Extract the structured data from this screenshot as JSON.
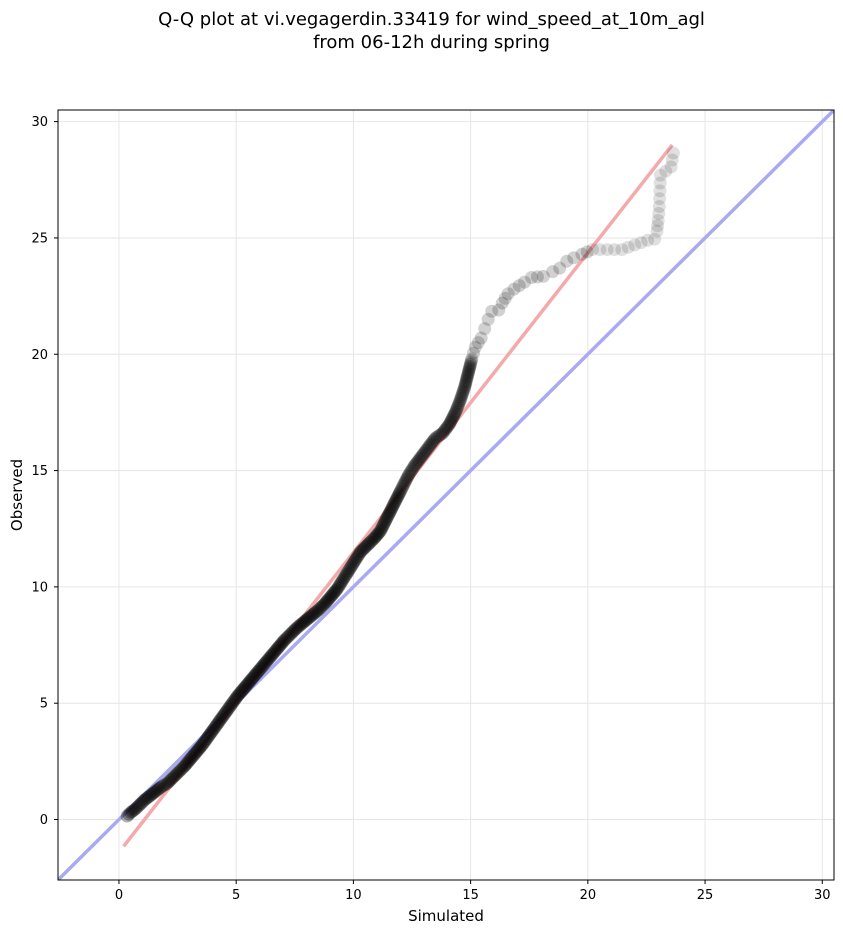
{
  "chart_data": {
    "type": "scatter",
    "title_line1": "Q-Q plot at vi.vegagerdin.33419 for wind_speed_at_10m_agl",
    "title_line2": "from 06-12h during spring",
    "xlabel": "Simulated",
    "ylabel": "Observed",
    "xlim": [
      -2.6,
      30.5
    ],
    "ylim": [
      -2.6,
      30.5
    ],
    "xticks": [
      0,
      5,
      10,
      15,
      20,
      25,
      30
    ],
    "yticks": [
      0,
      5,
      10,
      15,
      20,
      25,
      30
    ],
    "grid": true,
    "colors": {
      "points": "#000000",
      "identity_line": "#aaaaf2",
      "fit_line": "#f4aaaa",
      "grid": "#e6e6e6"
    },
    "identity_line": {
      "x": [
        -2.6,
        30.5
      ],
      "y": [
        -2.6,
        30.5
      ]
    },
    "fit_line": {
      "x": [
        0.2,
        23.6
      ],
      "y": [
        -1.15,
        29.0
      ]
    },
    "quantiles": [
      [
        0.35,
        0.15
      ],
      [
        0.5,
        0.3
      ],
      [
        0.7,
        0.45
      ],
      [
        0.9,
        0.65
      ],
      [
        1.1,
        0.85
      ],
      [
        1.3,
        1.0
      ],
      [
        1.55,
        1.2
      ],
      [
        1.8,
        1.4
      ],
      [
        2.05,
        1.55
      ],
      [
        2.3,
        1.8
      ],
      [
        2.55,
        2.05
      ],
      [
        2.8,
        2.3
      ],
      [
        3.05,
        2.6
      ],
      [
        3.3,
        2.9
      ],
      [
        3.55,
        3.2
      ],
      [
        3.8,
        3.55
      ],
      [
        4.05,
        3.9
      ],
      [
        4.3,
        4.25
      ],
      [
        4.55,
        4.6
      ],
      [
        4.8,
        4.95
      ],
      [
        5.05,
        5.3
      ],
      [
        5.3,
        5.6
      ],
      [
        5.55,
        5.9
      ],
      [
        5.8,
        6.2
      ],
      [
        6.05,
        6.5
      ],
      [
        6.3,
        6.8
      ],
      [
        6.55,
        7.1
      ],
      [
        6.8,
        7.4
      ],
      [
        7.05,
        7.7
      ],
      [
        7.3,
        7.95
      ],
      [
        7.6,
        8.25
      ],
      [
        7.9,
        8.5
      ],
      [
        8.2,
        8.75
      ],
      [
        8.5,
        9.0
      ],
      [
        8.8,
        9.3
      ],
      [
        9.05,
        9.6
      ],
      [
        9.3,
        9.9
      ],
      [
        9.55,
        10.3
      ],
      [
        9.8,
        10.7
      ],
      [
        10.05,
        11.1
      ],
      [
        10.3,
        11.5
      ],
      [
        10.6,
        11.8
      ],
      [
        10.9,
        12.1
      ],
      [
        11.15,
        12.4
      ],
      [
        11.35,
        12.8
      ],
      [
        11.55,
        13.2
      ],
      [
        11.75,
        13.6
      ],
      [
        11.95,
        14.0
      ],
      [
        12.15,
        14.4
      ],
      [
        12.35,
        14.8
      ],
      [
        12.6,
        15.2
      ],
      [
        12.9,
        15.6
      ],
      [
        13.2,
        16.0
      ],
      [
        13.5,
        16.4
      ],
      [
        13.8,
        16.6
      ],
      [
        14.1,
        17.0
      ],
      [
        14.35,
        17.5
      ],
      [
        14.55,
        18.0
      ],
      [
        14.75,
        18.6
      ],
      [
        14.85,
        19.0
      ],
      [
        14.95,
        19.4
      ],
      [
        15.05,
        19.8
      ],
      [
        15.2,
        20.3
      ],
      [
        15.45,
        20.7
      ],
      [
        15.6,
        21.1
      ],
      [
        15.75,
        21.5
      ],
      [
        15.9,
        21.85
      ],
      [
        16.2,
        21.9
      ],
      [
        16.35,
        22.2
      ],
      [
        16.6,
        22.6
      ],
      [
        16.85,
        22.8
      ],
      [
        17.3,
        23.1
      ],
      [
        17.6,
        23.3
      ],
      [
        18.1,
        23.35
      ],
      [
        18.5,
        23.55
      ],
      [
        18.8,
        23.7
      ],
      [
        19.1,
        24.0
      ],
      [
        19.4,
        24.15
      ],
      [
        19.75,
        24.3
      ],
      [
        20.2,
        24.5
      ],
      [
        21.45,
        24.5
      ],
      [
        22.55,
        24.9
      ],
      [
        22.85,
        24.95
      ],
      [
        22.95,
        25.3
      ],
      [
        23.0,
        25.75
      ],
      [
        23.05,
        26.35
      ],
      [
        23.1,
        27.7
      ],
      [
        23.55,
        28.05
      ],
      [
        23.65,
        28.65
      ]
    ]
  }
}
